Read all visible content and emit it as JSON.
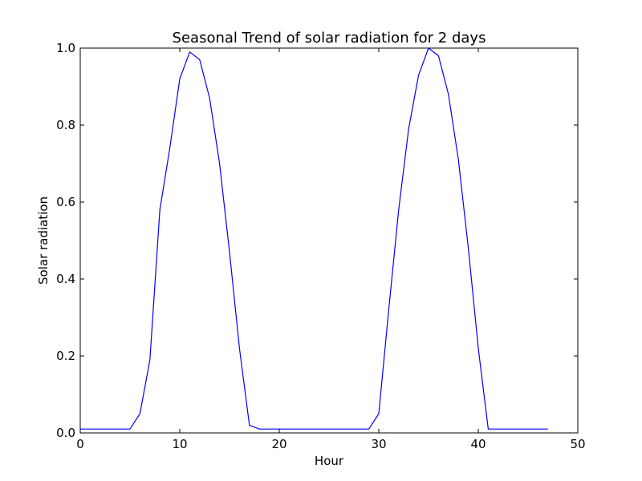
{
  "chart_data": {
    "type": "line",
    "title": "Seasonal Trend of solar radiation for 2 days",
    "xlabel": "Hour",
    "ylabel": "Solar radiation",
    "xlim": [
      0,
      50
    ],
    "ylim": [
      0.0,
      1.0
    ],
    "xticks": [
      0,
      10,
      20,
      30,
      40,
      50
    ],
    "xtick_labels": [
      "0",
      "10",
      "20",
      "30",
      "40",
      "50"
    ],
    "yticks": [
      0.0,
      0.2,
      0.4,
      0.6,
      0.8,
      1.0
    ],
    "ytick_labels": [
      "0.0",
      "0.2",
      "0.4",
      "0.6",
      "0.8",
      "1.0"
    ],
    "grid": false,
    "series": [
      {
        "color": "#0000ff",
        "x": [
          0,
          1,
          2,
          3,
          4,
          5,
          6,
          7,
          8,
          9,
          10,
          11,
          12,
          13,
          14,
          15,
          16,
          17,
          18,
          19,
          20,
          21,
          22,
          23,
          24,
          25,
          26,
          27,
          28,
          29,
          30,
          31,
          32,
          33,
          34,
          35,
          36,
          37,
          38,
          39,
          40,
          41,
          42,
          43,
          44,
          45,
          46,
          47
        ],
        "values": [
          0.01,
          0.01,
          0.01,
          0.01,
          0.01,
          0.01,
          0.05,
          0.19,
          0.58,
          0.74,
          0.92,
          0.99,
          0.97,
          0.87,
          0.7,
          0.47,
          0.22,
          0.02,
          0.01,
          0.01,
          0.01,
          0.01,
          0.01,
          0.01,
          0.01,
          0.01,
          0.01,
          0.01,
          0.01,
          0.01,
          0.05,
          0.32,
          0.58,
          0.79,
          0.93,
          1.0,
          0.98,
          0.88,
          0.71,
          0.48,
          0.22,
          0.01,
          0.01,
          0.01,
          0.01,
          0.01,
          0.01,
          0.01
        ]
      }
    ]
  }
}
